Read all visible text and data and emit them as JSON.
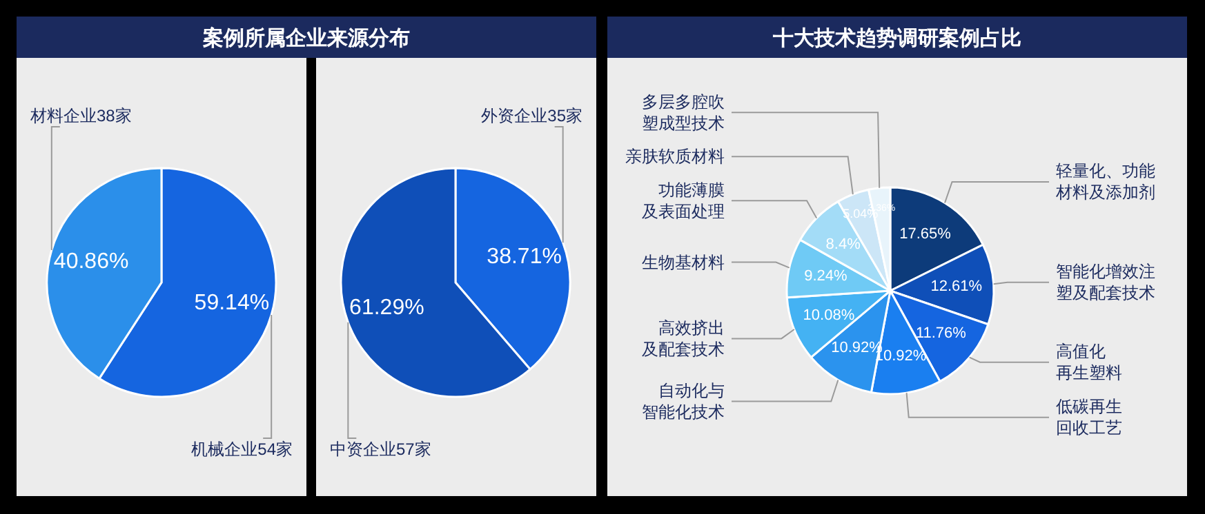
{
  "chart_data": [
    {
      "type": "pie",
      "title": "案例所属企业来源分布",
      "categories": [
        "机械企业54家",
        "材料企业38家"
      ],
      "values": [
        59.14,
        40.86
      ],
      "colors": [
        "#1565e0",
        "#2b8fea"
      ],
      "value_labels": [
        "59.14%",
        "40.86%"
      ],
      "legend": false
    },
    {
      "type": "pie",
      "categories": [
        "外资企业35家",
        "中资企业57家"
      ],
      "values": [
        38.71,
        61.29
      ],
      "colors": [
        "#1565e0",
        "#0f4fb8"
      ],
      "value_labels": [
        "38.71%",
        "61.29%"
      ],
      "legend": false
    },
    {
      "type": "pie",
      "title": "十大技术趋势调研案例占比",
      "categories": [
        "轻量化、功能材料及添加剂",
        "智能化增效注塑及配套技术",
        "高值化再生塑料",
        "低碳再生回收工艺",
        "自动化与智能化技术",
        "高效挤出及配套技术",
        "生物基材料",
        "功能薄膜及表面处理",
        "亲肤软质材料",
        "多层多腔吹塑成型技术"
      ],
      "values": [
        17.65,
        12.61,
        11.76,
        10.92,
        10.92,
        10.08,
        9.24,
        8.4,
        5.04,
        3.36
      ],
      "colors": [
        "#0d3b7a",
        "#0f4fb8",
        "#1565e0",
        "#1a7ff0",
        "#2b93ee",
        "#44b2f3",
        "#6fcaf5",
        "#a3dcf7",
        "#cce6f7",
        "#e8f4fb"
      ],
      "value_labels": [
        "17.65%",
        "12.61%",
        "11.76%",
        "10.92%",
        "10.92%",
        "10.08%",
        "9.24%",
        "8.4%",
        "5.04%",
        "3.36%"
      ],
      "legend": false
    }
  ]
}
